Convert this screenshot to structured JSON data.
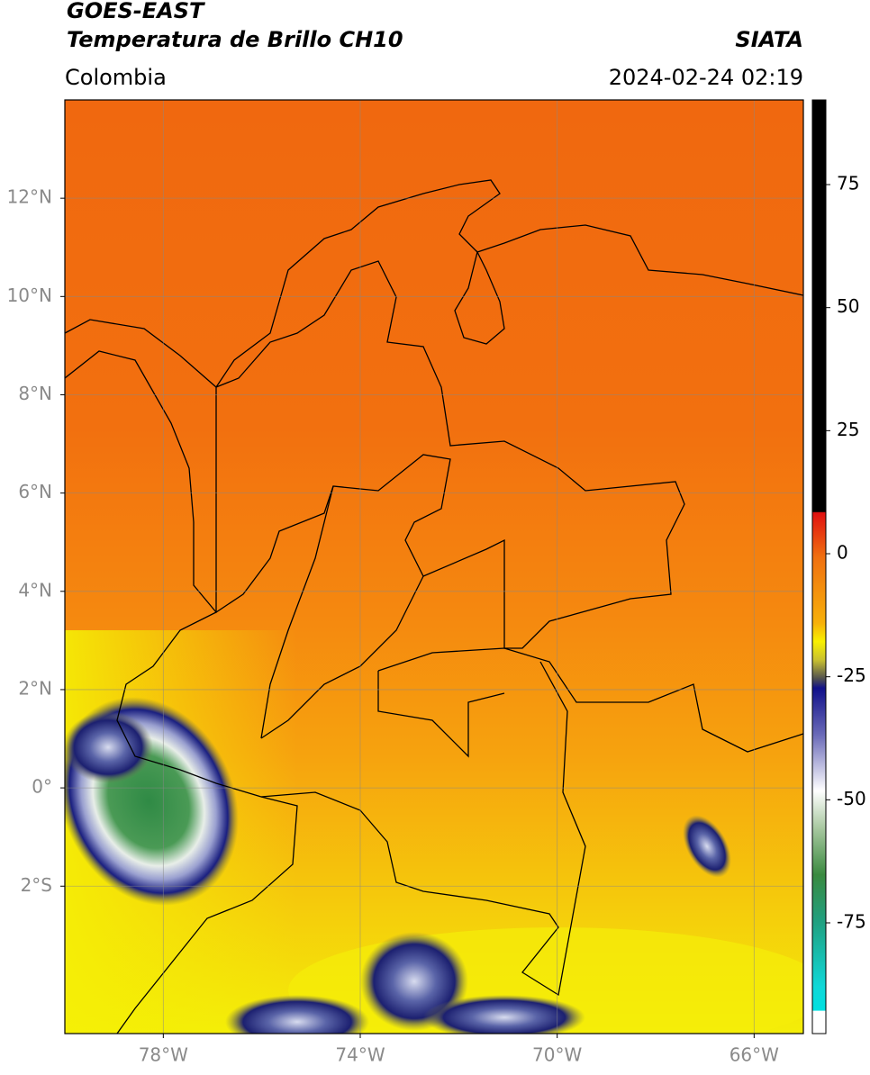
{
  "map": {
    "title": "GOES-EAST",
    "subtitle": "Temperatura de Brillo CH10",
    "source": "SIATA",
    "region": "Colombia",
    "timestamp": "2024-02-24 02:19",
    "lonlim": [
      -80,
      -65
    ],
    "latlim": [
      -5,
      14
    ],
    "lon_ticks": [
      {
        "value": -78,
        "label": "78°W"
      },
      {
        "value": -74,
        "label": "74°W"
      },
      {
        "value": -70,
        "label": "70°W"
      },
      {
        "value": -66,
        "label": "66°W"
      }
    ],
    "lat_ticks": [
      {
        "value": 12,
        "label": "12°N"
      },
      {
        "value": 10,
        "label": "10°N"
      },
      {
        "value": 8,
        "label": "8°N"
      },
      {
        "value": 6,
        "label": "6°N"
      },
      {
        "value": 4,
        "label": "4°N"
      },
      {
        "value": 2,
        "label": "2°N"
      },
      {
        "value": 0,
        "label": "0°"
      },
      {
        "value": -2,
        "label": "2°S"
      }
    ],
    "colorbar": {
      "lim": [
        -97.5,
        92.2
      ],
      "ticks": [
        75,
        50,
        25,
        0,
        -25,
        -50,
        -75
      ]
    }
  }
}
